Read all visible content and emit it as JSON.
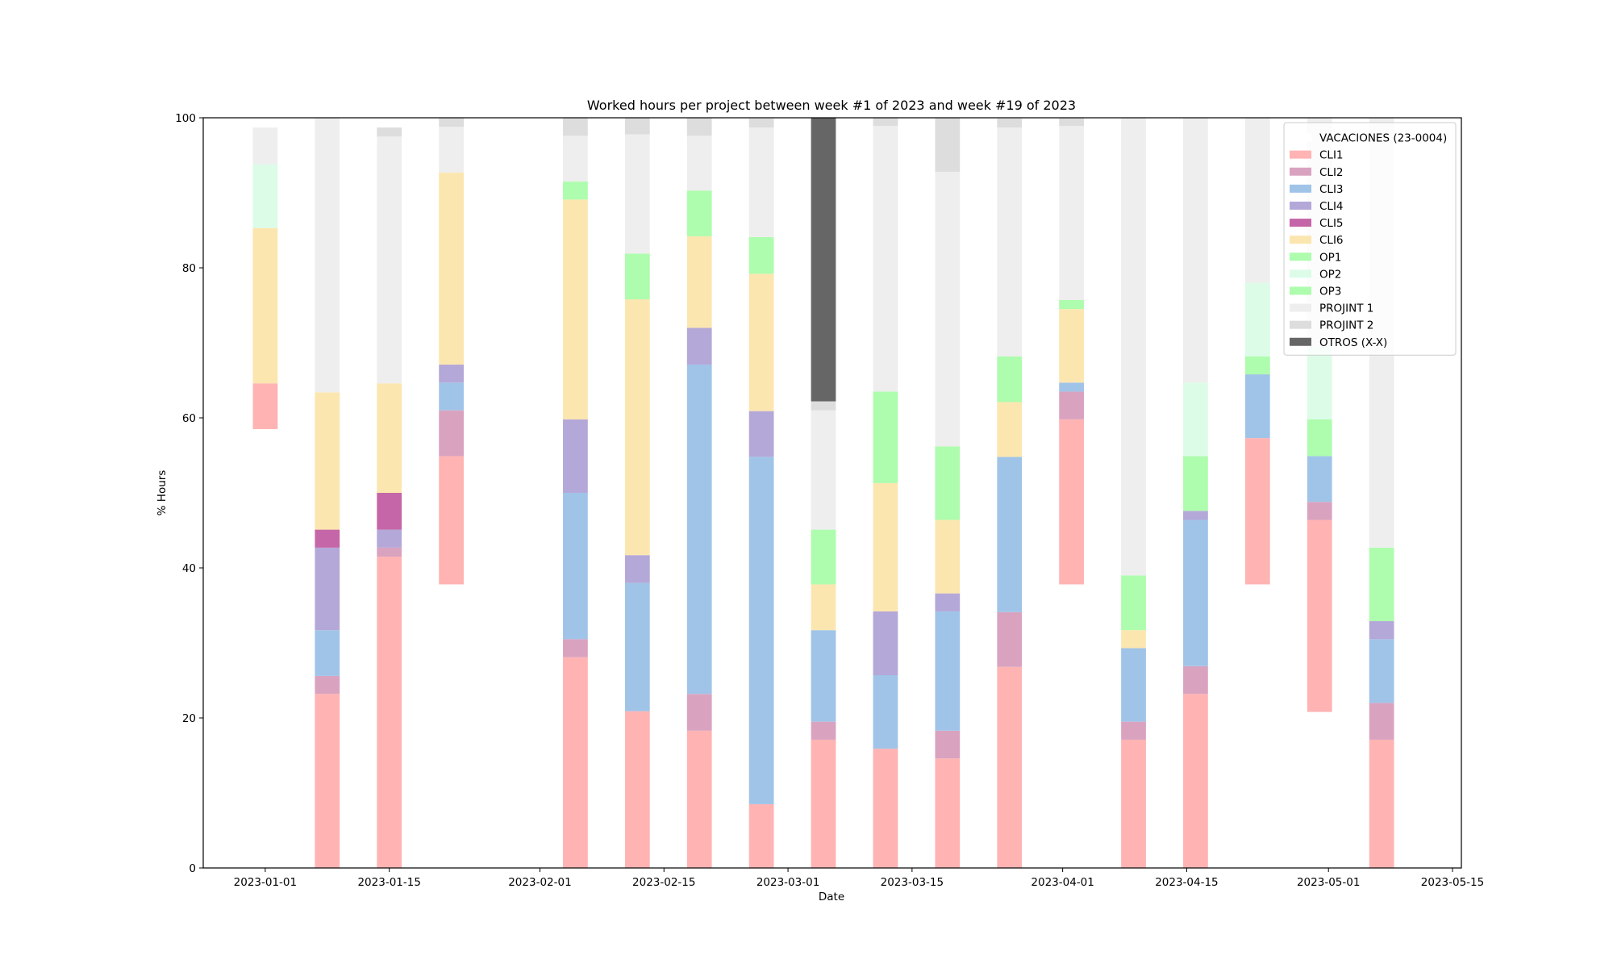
{
  "chart_data": {
    "type": "bar",
    "stacked": true,
    "title": "Worked hours per project between week #1 of 2023 and week #19 of 2023",
    "xlabel": "Date",
    "ylabel": "% Hours",
    "ylim": [
      0,
      100
    ],
    "xlim": [
      "2022-12-25",
      "2023-05-16"
    ],
    "yticks": [
      0,
      20,
      40,
      60,
      80,
      100
    ],
    "xticks": [
      "2023-01-01",
      "2023-01-15",
      "2023-02-01",
      "2023-02-15",
      "2023-03-01",
      "2023-03-15",
      "2023-04-01",
      "2023-04-15",
      "2023-05-01",
      "2023-05-15"
    ],
    "grid": false,
    "legend_position": "upper-right",
    "x": [
      "2023-01-01",
      "2023-01-08",
      "2023-01-15",
      "2023-01-22",
      "2023-01-29",
      "2023-02-05",
      "2023-02-12",
      "2023-02-19",
      "2023-02-26",
      "2023-03-05",
      "2023-03-12",
      "2023-03-19",
      "2023-03-26",
      "2023-04-02",
      "2023-04-09",
      "2023-04-16",
      "2023-04-23",
      "2023-04-30",
      "2023-05-07"
    ],
    "series": [
      {
        "name": "VACACIONES (23-0004)",
        "color": "#ffffff",
        "values": [
          58.5,
          0,
          0,
          37.8,
          0,
          0,
          0,
          0,
          0,
          0,
          0,
          0,
          0,
          37.8,
          0,
          0,
          37.8,
          20.8,
          0
        ]
      },
      {
        "name": "CLI1",
        "color": "#ffb3b3",
        "values": [
          6.1,
          23.2,
          41.5,
          17.1,
          0,
          28.1,
          20.9,
          18.3,
          8.5,
          17.1,
          15.9,
          14.6,
          26.8,
          22.0,
          17.1,
          23.2,
          19.5,
          25.6,
          17.1
        ]
      },
      {
        "name": "CLI2",
        "color": "#d9a3c0",
        "values": [
          0,
          2.4,
          1.2,
          6.1,
          0,
          2.4,
          0,
          4.9,
          0,
          2.4,
          0,
          3.7,
          7.3,
          3.7,
          2.4,
          3.7,
          0,
          2.4,
          4.9
        ]
      },
      {
        "name": "CLI3",
        "color": "#a0c4e8",
        "values": [
          0,
          6.1,
          0,
          3.7,
          0,
          19.5,
          17.1,
          43.9,
          46.3,
          12.2,
          9.8,
          15.9,
          20.7,
          1.2,
          9.8,
          19.5,
          8.5,
          6.1,
          8.5
        ]
      },
      {
        "name": "CLI4",
        "color": "#b4a8d8",
        "values": [
          0,
          11.0,
          2.4,
          2.4,
          0,
          9.8,
          3.7,
          4.9,
          6.1,
          0,
          8.5,
          2.4,
          0,
          0,
          0,
          1.2,
          0,
          0,
          2.4
        ]
      },
      {
        "name": "CLI5",
        "color": "#c566a8",
        "values": [
          0,
          2.4,
          4.9,
          0,
          0,
          0,
          0,
          0,
          0,
          0,
          0,
          0,
          0,
          0,
          0,
          0,
          0,
          0,
          0
        ]
      },
      {
        "name": "CLI6",
        "color": "#fce6b0",
        "values": [
          20.7,
          18.3,
          14.6,
          25.6,
          0,
          29.3,
          34.1,
          12.2,
          18.3,
          6.1,
          17.1,
          9.8,
          7.3,
          9.8,
          2.4,
          0,
          0,
          0,
          0
        ]
      },
      {
        "name": "OP1",
        "color": "#aefcae",
        "values": [
          0,
          0,
          0,
          0,
          0,
          2.4,
          6.1,
          6.1,
          4.9,
          7.3,
          12.2,
          9.8,
          6.1,
          1.2,
          7.3,
          7.3,
          2.4,
          4.9,
          9.8
        ]
      },
      {
        "name": "OP2",
        "color": "#dcfce8",
        "values": [
          8.5,
          0,
          0,
          0,
          0,
          0,
          0,
          0,
          0,
          0,
          0,
          0,
          0,
          0,
          0,
          9.8,
          9.8,
          9.8,
          0
        ]
      },
      {
        "name": "OP3",
        "color": "#aefcae",
        "values": [
          0,
          0,
          0,
          0,
          0,
          0,
          0,
          0,
          0,
          0,
          0,
          0,
          0,
          0,
          0,
          0,
          0,
          0,
          0
        ]
      },
      {
        "name": "PROJINT 1",
        "color": "#eeeeee",
        "values": [
          4.9,
          36.6,
          32.9,
          6.1,
          0,
          6.1,
          15.9,
          7.3,
          14.6,
          15.9,
          35.4,
          36.6,
          30.5,
          23.2,
          61.0,
          35.4,
          22.0,
          30.5,
          57.3
        ]
      },
      {
        "name": "PROJINT 2",
        "color": "#dddddd",
        "values": [
          0,
          0,
          1.2,
          1.2,
          0,
          2.4,
          2.4,
          2.4,
          1.2,
          1.2,
          1.2,
          7.3,
          1.2,
          1.2,
          0,
          0,
          0,
          0,
          0
        ]
      },
      {
        "name": "OTROS (X-X)",
        "color": "#666666",
        "values": [
          0,
          0,
          0,
          0,
          0,
          0,
          0,
          0,
          0,
          37.8,
          0,
          0,
          0,
          0,
          0,
          0,
          0,
          0,
          0
        ]
      }
    ]
  }
}
